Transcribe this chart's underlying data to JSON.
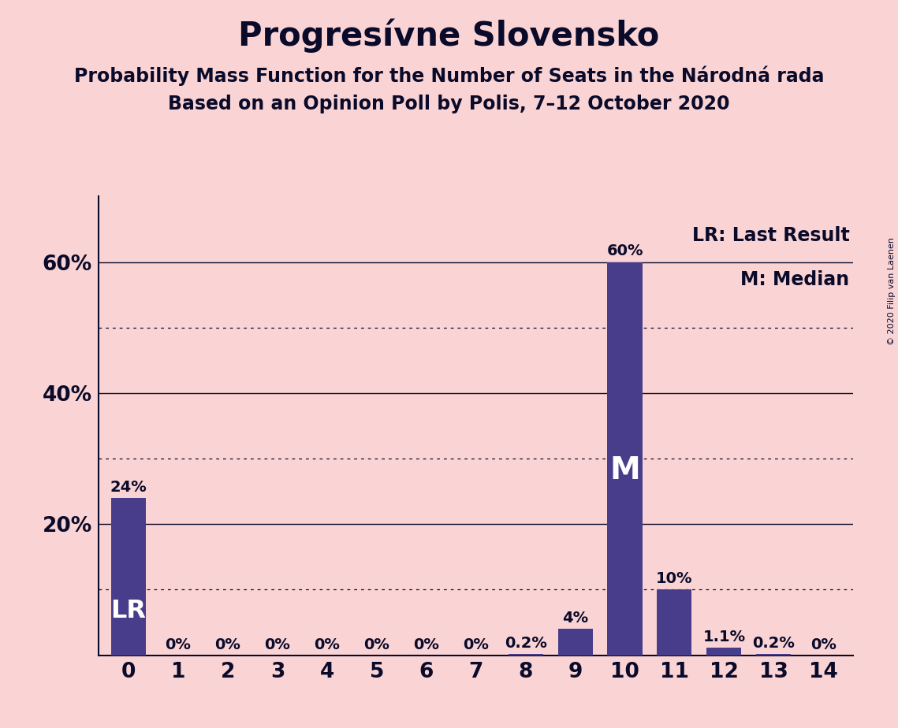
{
  "title": "Progresívne Slovensko",
  "subtitle1": "Probability Mass Function for the Number of Seats in the Národná rada",
  "subtitle2": "Based on an Opinion Poll by Polis, 7–12 October 2020",
  "copyright": "© 2020 Filip van Laenen",
  "categories": [
    0,
    1,
    2,
    3,
    4,
    5,
    6,
    7,
    8,
    9,
    10,
    11,
    12,
    13,
    14
  ],
  "values": [
    0.24,
    0.0,
    0.0,
    0.0,
    0.0,
    0.0,
    0.0,
    0.0,
    0.002,
    0.04,
    0.6,
    0.1,
    0.011,
    0.002,
    0.0
  ],
  "bar_labels": [
    "24%",
    "0%",
    "0%",
    "0%",
    "0%",
    "0%",
    "0%",
    "0%",
    "0.2%",
    "4%",
    "60%",
    "10%",
    "1.1%",
    "0.2%",
    "0%"
  ],
  "bar_color": "#483D8B",
  "background_color": "#FAD4D4",
  "text_color": "#0a0a2a",
  "lr_index": 0,
  "median_index": 10,
  "yticks": [
    0.2,
    0.4,
    0.6
  ],
  "ytick_labels": [
    "20%",
    "40%",
    "60%"
  ],
  "dotted_yticks": [
    0.1,
    0.3,
    0.5
  ],
  "ylim": [
    0,
    0.7
  ],
  "legend_lr": "LR: Last Result",
  "legend_m": "M: Median",
  "title_fontsize": 30,
  "subtitle_fontsize": 17,
  "bar_label_fontsize": 14,
  "axis_label_fontsize": 19,
  "legend_fontsize": 17,
  "copyright_fontsize": 8
}
